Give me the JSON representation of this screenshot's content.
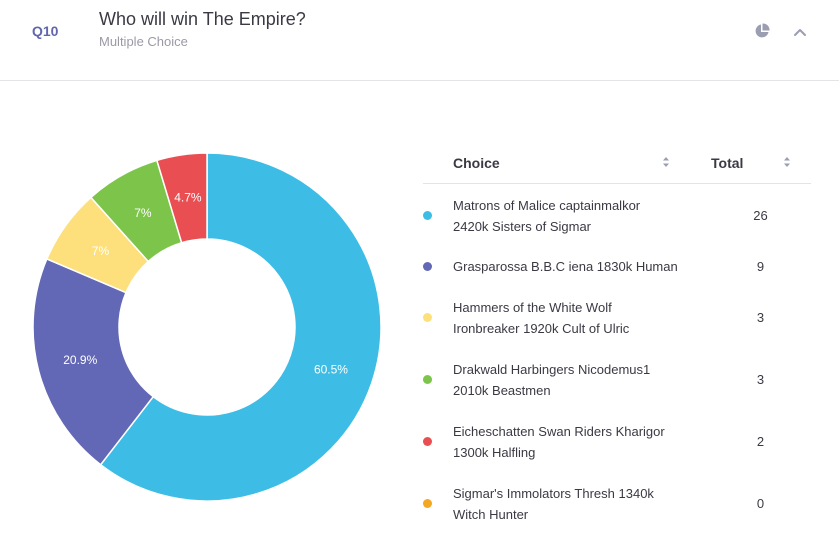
{
  "question": {
    "number": "Q10",
    "title": "Who will win The Empire?",
    "type": "Multiple Choice",
    "icons": {
      "chart_toggle": "pie-chart-icon",
      "collapse": "chevron-up-icon"
    }
  },
  "table": {
    "col_choice": "Choice",
    "col_total": "Total",
    "sort_icon": "sort-icon"
  },
  "chart_data": {
    "type": "pie",
    "style": "donut",
    "categories": [
      "Matrons of Malice captainmalkor 2420k Sisters of Sigmar",
      "Grasparossa B.B.C iena 1830k Human",
      "Hammers of the White Wolf Ironbreaker 1920k Cult of Ulric",
      "Drakwald Harbingers Nicodemus1 2010k Beastmen",
      "Eicheschatten Swan Riders Kharigor 1300k Halfling",
      "Sigmar's Immolators Thresh 1340k Witch Hunter"
    ],
    "values": [
      26,
      9,
      3,
      3,
      2,
      0
    ],
    "labels": [
      "60.5%",
      "20.9%",
      "7%",
      "7%",
      "4.7%",
      ""
    ],
    "colors": [
      "#3dbde5",
      "#6268b5",
      "#fde07c",
      "#7cc54a",
      "#e94f52",
      "#f5a623"
    ],
    "legend": "right"
  },
  "rows": [
    {
      "line1": "Matrons of Malice captainmalkor",
      "line2": "2420k Sisters of Sigmar",
      "total": "26"
    },
    {
      "line1": "Grasparossa B.B.C iena 1830k Human",
      "line2": "",
      "total": "9"
    },
    {
      "line1": "Hammers of the White Wolf",
      "line2": "Ironbreaker 1920k Cult of Ulric",
      "total": "3"
    },
    {
      "line1": "Drakwald Harbingers Nicodemus1",
      "line2": "2010k Beastmen",
      "total": "3"
    },
    {
      "line1": "Eicheschatten Swan Riders Kharigor",
      "line2": "1300k Halfling",
      "total": "2"
    },
    {
      "line1": "Sigmar's Immolators Thresh 1340k",
      "line2": "Witch Hunter",
      "total": "0"
    }
  ]
}
